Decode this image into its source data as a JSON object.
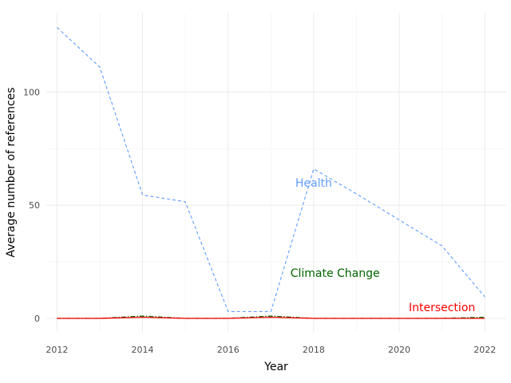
{
  "chart_data": {
    "type": "line",
    "title": "",
    "xlabel": "Year",
    "ylabel": "Average number of references",
    "xlim": [
      2011.75,
      2022.5
    ],
    "ylim": [
      -6,
      135
    ],
    "x_ticks": [
      2012,
      2014,
      2016,
      2018,
      2020,
      2022
    ],
    "x_tick_labels": [
      "2012",
      "2014",
      "2016",
      "2018",
      "2020",
      "2022"
    ],
    "y_ticks": [
      0,
      50,
      100
    ],
    "y_tick_labels": [
      "0",
      "50",
      "100"
    ],
    "grid": true,
    "legend": "none",
    "x": [
      2012,
      2013,
      2014,
      2015,
      2016,
      2017,
      2018,
      2019,
      2020,
      2021,
      2022
    ],
    "series": [
      {
        "name": "Health",
        "color": "#619CFF",
        "style": "dashed",
        "values": [
          128.5,
          111,
          54.5,
          51.5,
          3,
          3,
          66,
          55,
          43.5,
          32,
          9.5
        ],
        "label_at": [
          2018,
          60
        ]
      },
      {
        "name": "Climate Change",
        "color": "#006400",
        "style": "dashdot",
        "values": [
          0,
          0,
          1,
          0,
          0,
          1,
          0,
          0,
          0,
          0,
          0.5
        ],
        "label_at": [
          2018.5,
          20
        ]
      },
      {
        "name": "Intersection",
        "color": "#FF0000",
        "style": "solid",
        "values": [
          0,
          0,
          0.5,
          0,
          0,
          0.5,
          0,
          0,
          0,
          0,
          0
        ],
        "label_at": [
          2021,
          5
        ]
      }
    ]
  }
}
